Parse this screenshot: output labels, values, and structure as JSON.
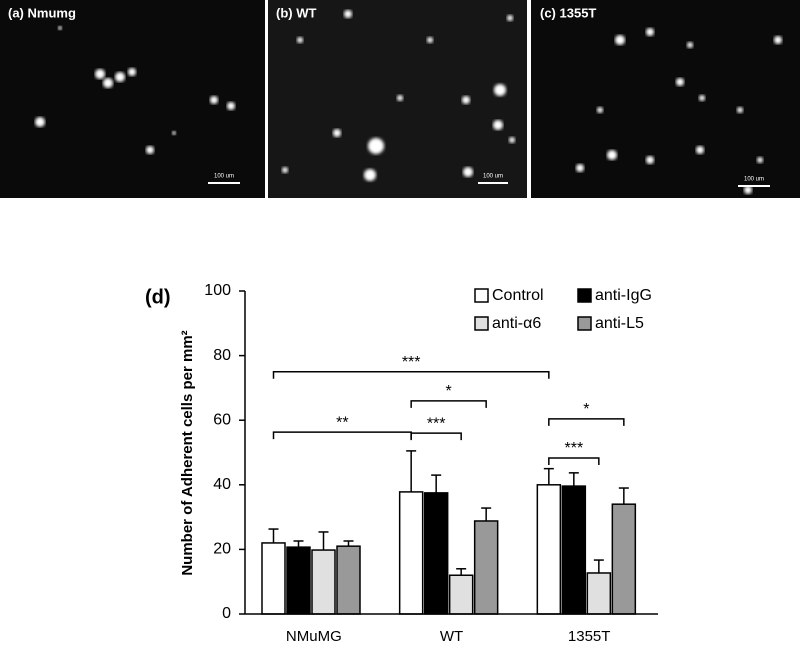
{
  "panels": [
    {
      "label": "(a) Nmumg",
      "scale_bar": "100 um"
    },
    {
      "label": "(b) WT",
      "scale_bar": "100 um"
    },
    {
      "label": "(c) 1355T",
      "scale_bar": "100 um"
    }
  ],
  "chart_data": {
    "type": "bar",
    "panel_label": "(d)",
    "y_label": "Number of Adherent cells per mm²",
    "categories": [
      "NMuMG",
      "WT",
      "1355T"
    ],
    "series": [
      {
        "name": "Control",
        "color": "#ffffff",
        "values": [
          22,
          37.8,
          40
        ],
        "errors": [
          4.3,
          12.7,
          5
        ]
      },
      {
        "name": "anti-IgG",
        "color": "#000000",
        "values": [
          20.7,
          37.5,
          39.6
        ],
        "errors": [
          1.9,
          5.5,
          4.1
        ]
      },
      {
        "name": "anti-α6",
        "color": "#e0e0e0",
        "values": [
          19.8,
          12,
          12.7
        ],
        "errors": [
          5.6,
          2,
          4
        ]
      },
      {
        "name": "anti-L5",
        "color": "#999999",
        "values": [
          21,
          28.8,
          34
        ],
        "errors": [
          1.6,
          4,
          5
        ]
      }
    ],
    "ylim": [
      0,
      100
    ],
    "yticks": [
      0,
      20,
      40,
      60,
      80,
      100
    ],
    "annotations": [
      {
        "text": "***",
        "y": 75
      },
      {
        "text": "**",
        "y": 56.3
      },
      {
        "text": "*",
        "y": 66
      },
      {
        "text": "***",
        "y": 56
      },
      {
        "text": "*",
        "y": 60.4
      },
      {
        "text": "***",
        "y": 48.3
      }
    ]
  }
}
